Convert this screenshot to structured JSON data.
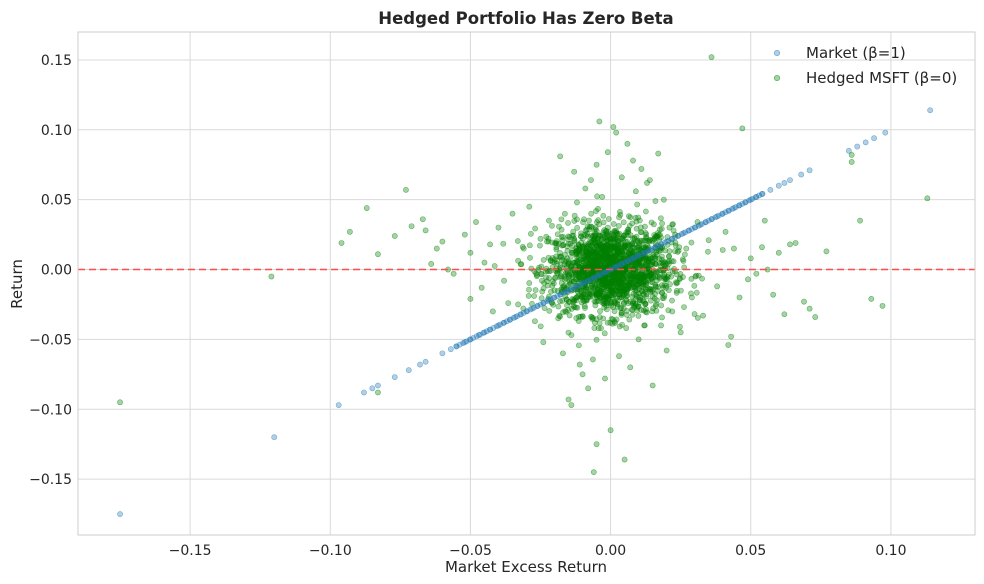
{
  "chart_data": {
    "type": "scatter",
    "title": "Hedged Portfolio Has Zero Beta",
    "xlabel": "Market Excess Return",
    "ylabel": "Return",
    "xlim": [
      -0.19,
      0.13
    ],
    "ylim": [
      -0.19,
      0.17
    ],
    "xticks": [
      -0.15,
      -0.1,
      -0.05,
      0.0,
      0.05,
      0.1
    ],
    "xtick_labels": [
      "−0.15",
      "−0.10",
      "−0.05",
      "0.00",
      "0.05",
      "0.10"
    ],
    "yticks": [
      0.15,
      0.1,
      0.05,
      0.0,
      -0.05,
      -0.1,
      -0.15
    ],
    "ytick_labels": [
      "0.15",
      "0.10",
      "0.05",
      "0.00",
      "−0.05",
      "−0.10",
      "−0.15"
    ],
    "grid": true,
    "legend_position": "top-right",
    "reference_line": {
      "y": 0,
      "style": "dashed",
      "color": "#ff4d4d"
    },
    "series": [
      {
        "name": "Market (β=1)",
        "color": "#1f77b4",
        "points": [
          [
            -0.175,
            -0.175
          ],
          [
            -0.12,
            -0.12
          ],
          [
            -0.097,
            -0.097
          ],
          [
            -0.088,
            -0.088
          ],
          [
            -0.085,
            -0.085
          ],
          [
            -0.083,
            -0.083
          ],
          [
            -0.077,
            -0.077
          ],
          [
            -0.072,
            -0.072
          ],
          [
            -0.068,
            -0.068
          ],
          [
            -0.066,
            -0.066
          ],
          [
            -0.06,
            -0.06
          ],
          [
            -0.057,
            -0.057
          ],
          [
            -0.055,
            -0.055
          ],
          [
            -0.052,
            -0.052
          ],
          [
            -0.05,
            -0.05
          ],
          [
            -0.047,
            -0.047
          ],
          [
            -0.045,
            -0.045
          ],
          [
            -0.043,
            -0.043
          ],
          [
            -0.04,
            -0.04
          ],
          [
            -0.038,
            -0.038
          ],
          [
            -0.036,
            -0.036
          ],
          [
            -0.034,
            -0.034
          ],
          [
            -0.032,
            -0.032
          ],
          [
            -0.03,
            -0.03
          ],
          [
            -0.028,
            -0.028
          ],
          [
            -0.026,
            -0.026
          ],
          [
            -0.024,
            -0.024
          ],
          [
            -0.022,
            -0.022
          ],
          [
            -0.02,
            -0.02
          ],
          [
            -0.018,
            -0.018
          ],
          [
            -0.016,
            -0.016
          ],
          [
            -0.014,
            -0.014
          ],
          [
            -0.012,
            -0.012
          ],
          [
            -0.01,
            -0.01
          ],
          [
            -0.008,
            -0.008
          ],
          [
            -0.006,
            -0.006
          ],
          [
            -0.004,
            -0.004
          ],
          [
            -0.002,
            -0.002
          ],
          [
            0.0,
            0.0
          ],
          [
            0.002,
            0.002
          ],
          [
            0.004,
            0.004
          ],
          [
            0.006,
            0.006
          ],
          [
            0.008,
            0.008
          ],
          [
            0.01,
            0.01
          ],
          [
            0.012,
            0.012
          ],
          [
            0.014,
            0.014
          ],
          [
            0.016,
            0.016
          ],
          [
            0.018,
            0.018
          ],
          [
            0.02,
            0.02
          ],
          [
            0.022,
            0.022
          ],
          [
            0.024,
            0.024
          ],
          [
            0.026,
            0.026
          ],
          [
            0.028,
            0.028
          ],
          [
            0.03,
            0.03
          ],
          [
            0.032,
            0.032
          ],
          [
            0.034,
            0.034
          ],
          [
            0.036,
            0.036
          ],
          [
            0.038,
            0.038
          ],
          [
            0.04,
            0.04
          ],
          [
            0.042,
            0.042
          ],
          [
            0.044,
            0.044
          ],
          [
            0.046,
            0.046
          ],
          [
            0.048,
            0.048
          ],
          [
            0.05,
            0.05
          ],
          [
            0.052,
            0.052
          ],
          [
            0.054,
            0.054
          ],
          [
            0.057,
            0.057
          ],
          [
            0.06,
            0.06
          ],
          [
            0.062,
            0.062
          ],
          [
            0.064,
            0.064
          ],
          [
            0.068,
            0.068
          ],
          [
            0.071,
            0.071
          ],
          [
            0.085,
            0.085
          ],
          [
            0.088,
            0.088
          ],
          [
            0.091,
            0.091
          ],
          [
            0.094,
            0.094
          ],
          [
            0.098,
            0.098
          ],
          [
            0.114,
            0.114
          ]
        ]
      },
      {
        "name": "Hedged MSFT (β=0)",
        "color": "#008000",
        "points": [
          [
            -0.175,
            -0.095
          ],
          [
            -0.121,
            -0.005
          ],
          [
            -0.096,
            0.019
          ],
          [
            -0.093,
            0.027
          ],
          [
            -0.087,
            0.044
          ],
          [
            -0.083,
            0.011
          ],
          [
            -0.083,
            -0.088
          ],
          [
            -0.077,
            0.024
          ],
          [
            -0.073,
            0.057
          ],
          [
            -0.071,
            0.031
          ],
          [
            -0.067,
            0.036
          ],
          [
            -0.066,
            0.028
          ],
          [
            -0.064,
            0.004
          ],
          [
            -0.062,
            0.015
          ],
          [
            -0.06,
            0.02
          ],
          [
            -0.058,
            0.0
          ],
          [
            -0.056,
            -0.003
          ],
          [
            -0.052,
            0.025
          ],
          [
            -0.05,
            -0.021
          ],
          [
            -0.05,
            0.012
          ],
          [
            -0.048,
            0.034
          ],
          [
            -0.046,
            -0.013
          ],
          [
            -0.045,
            0.005
          ],
          [
            -0.043,
            0.018
          ],
          [
            -0.042,
            -0.03
          ],
          [
            -0.04,
            0.03
          ],
          [
            -0.038,
            -0.008
          ],
          [
            -0.035,
            0.04
          ],
          [
            -0.033,
            -0.025
          ],
          [
            -0.031,
            0.015
          ],
          [
            -0.029,
            0.045
          ],
          [
            -0.027,
            -0.037
          ],
          [
            -0.025,
            0.022
          ],
          [
            -0.024,
            -0.052
          ],
          [
            -0.022,
            0.035
          ],
          [
            -0.02,
            -0.015
          ],
          [
            -0.018,
            0.081
          ],
          [
            -0.017,
            -0.06
          ],
          [
            -0.015,
            -0.093
          ],
          [
            -0.014,
            -0.097
          ],
          [
            -0.013,
            0.07
          ],
          [
            -0.012,
            0.048
          ],
          [
            -0.011,
            -0.068
          ],
          [
            -0.01,
            -0.075
          ],
          [
            -0.009,
            0.058
          ],
          [
            -0.008,
            -0.085
          ],
          [
            -0.007,
            0.064
          ],
          [
            -0.006,
            -0.145
          ],
          [
            -0.005,
            -0.125
          ],
          [
            -0.005,
            0.075
          ],
          [
            -0.004,
            0.106
          ],
          [
            -0.003,
            0.052
          ],
          [
            -0.002,
            -0.078
          ],
          [
            -0.001,
            0.084
          ],
          [
            0.0,
            -0.115
          ],
          [
            0.001,
            0.102
          ],
          [
            0.002,
            0.098
          ],
          [
            0.003,
            -0.062
          ],
          [
            0.004,
            0.066
          ],
          [
            0.005,
            -0.136
          ],
          [
            0.006,
            0.09
          ],
          [
            0.007,
            -0.07
          ],
          [
            0.008,
            0.078
          ],
          [
            0.009,
            0.056
          ],
          [
            0.01,
            -0.05
          ],
          [
            0.011,
            0.072
          ],
          [
            0.012,
            -0.04
          ],
          [
            0.013,
            0.062
          ],
          [
            0.014,
            0.064
          ],
          [
            0.015,
            -0.083
          ],
          [
            0.016,
            0.049
          ],
          [
            0.017,
            0.083
          ],
          [
            0.018,
            -0.04
          ],
          [
            0.019,
            0.05
          ],
          [
            0.02,
            -0.058
          ],
          [
            0.021,
            0.03
          ],
          [
            0.022,
            -0.03
          ],
          [
            0.023,
            0.025
          ],
          [
            0.025,
            -0.045
          ],
          [
            0.027,
            0.015
          ],
          [
            0.029,
            -0.02
          ],
          [
            0.031,
            0.034
          ],
          [
            0.033,
            -0.033
          ],
          [
            0.035,
            0.021
          ],
          [
            0.036,
            0.152
          ],
          [
            0.038,
            -0.012
          ],
          [
            0.04,
            0.014
          ],
          [
            0.041,
            0.027
          ],
          [
            0.042,
            -0.054
          ],
          [
            0.043,
            -0.048
          ],
          [
            0.044,
            0.015
          ],
          [
            0.046,
            -0.02
          ],
          [
            0.047,
            0.101
          ],
          [
            0.049,
            -0.007
          ],
          [
            0.05,
            0.008
          ],
          [
            0.052,
            -0.003
          ],
          [
            0.054,
            0.016
          ],
          [
            0.055,
            0.035
          ],
          [
            0.056,
            0.0
          ],
          [
            0.058,
            -0.018
          ],
          [
            0.06,
            0.012
          ],
          [
            0.062,
            -0.032
          ],
          [
            0.064,
            0.018
          ],
          [
            0.066,
            0.019
          ],
          [
            0.069,
            -0.023
          ],
          [
            0.071,
            -0.028
          ],
          [
            0.073,
            -0.034
          ],
          [
            0.077,
            0.013
          ],
          [
            0.086,
            0.077
          ],
          [
            0.086,
            0.082
          ],
          [
            0.089,
            0.035
          ],
          [
            0.093,
            -0.021
          ],
          [
            0.097,
            -0.026
          ],
          [
            0.113,
            0.051
          ]
        ]
      }
    ]
  }
}
